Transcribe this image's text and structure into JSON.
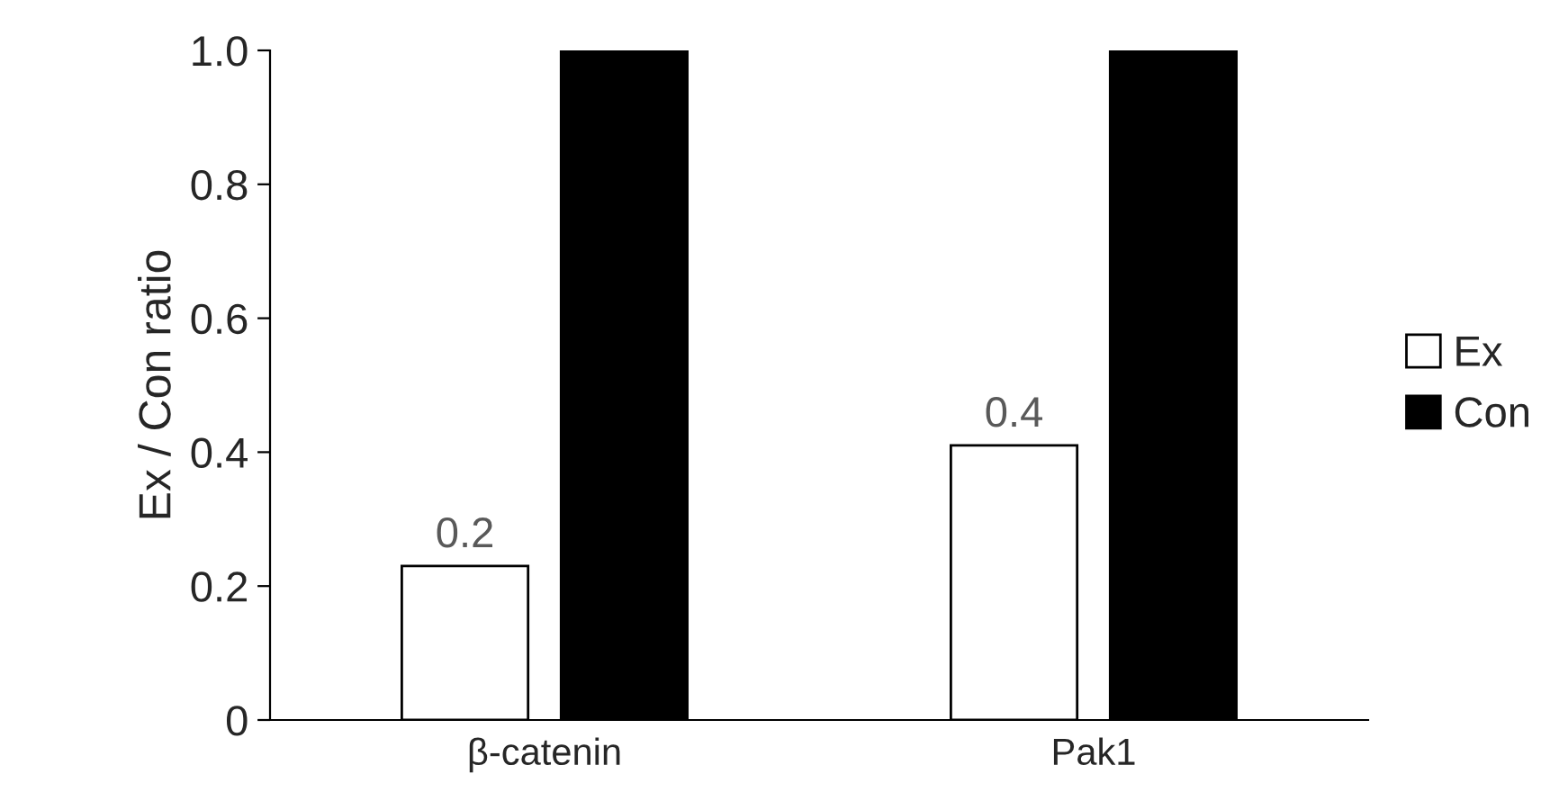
{
  "chart_data": {
    "type": "bar",
    "ylabel": "Ex / Con ratio",
    "categories": [
      "β-catenin",
      "Pak1"
    ],
    "series": [
      {
        "name": "Ex",
        "color": "#ffffff",
        "values": [
          0.23,
          0.41
        ],
        "value_labels": [
          "0.2",
          "0.4"
        ]
      },
      {
        "name": "Con",
        "color": "#000000",
        "values": [
          1.0,
          1.0
        ]
      }
    ],
    "ylim": [
      0,
      1
    ],
    "yticks": [
      0,
      0.2,
      0.4,
      0.6,
      0.8,
      {
        "value": 1,
        "label": "1.0"
      }
    ],
    "grid": false,
    "legend": "right"
  }
}
